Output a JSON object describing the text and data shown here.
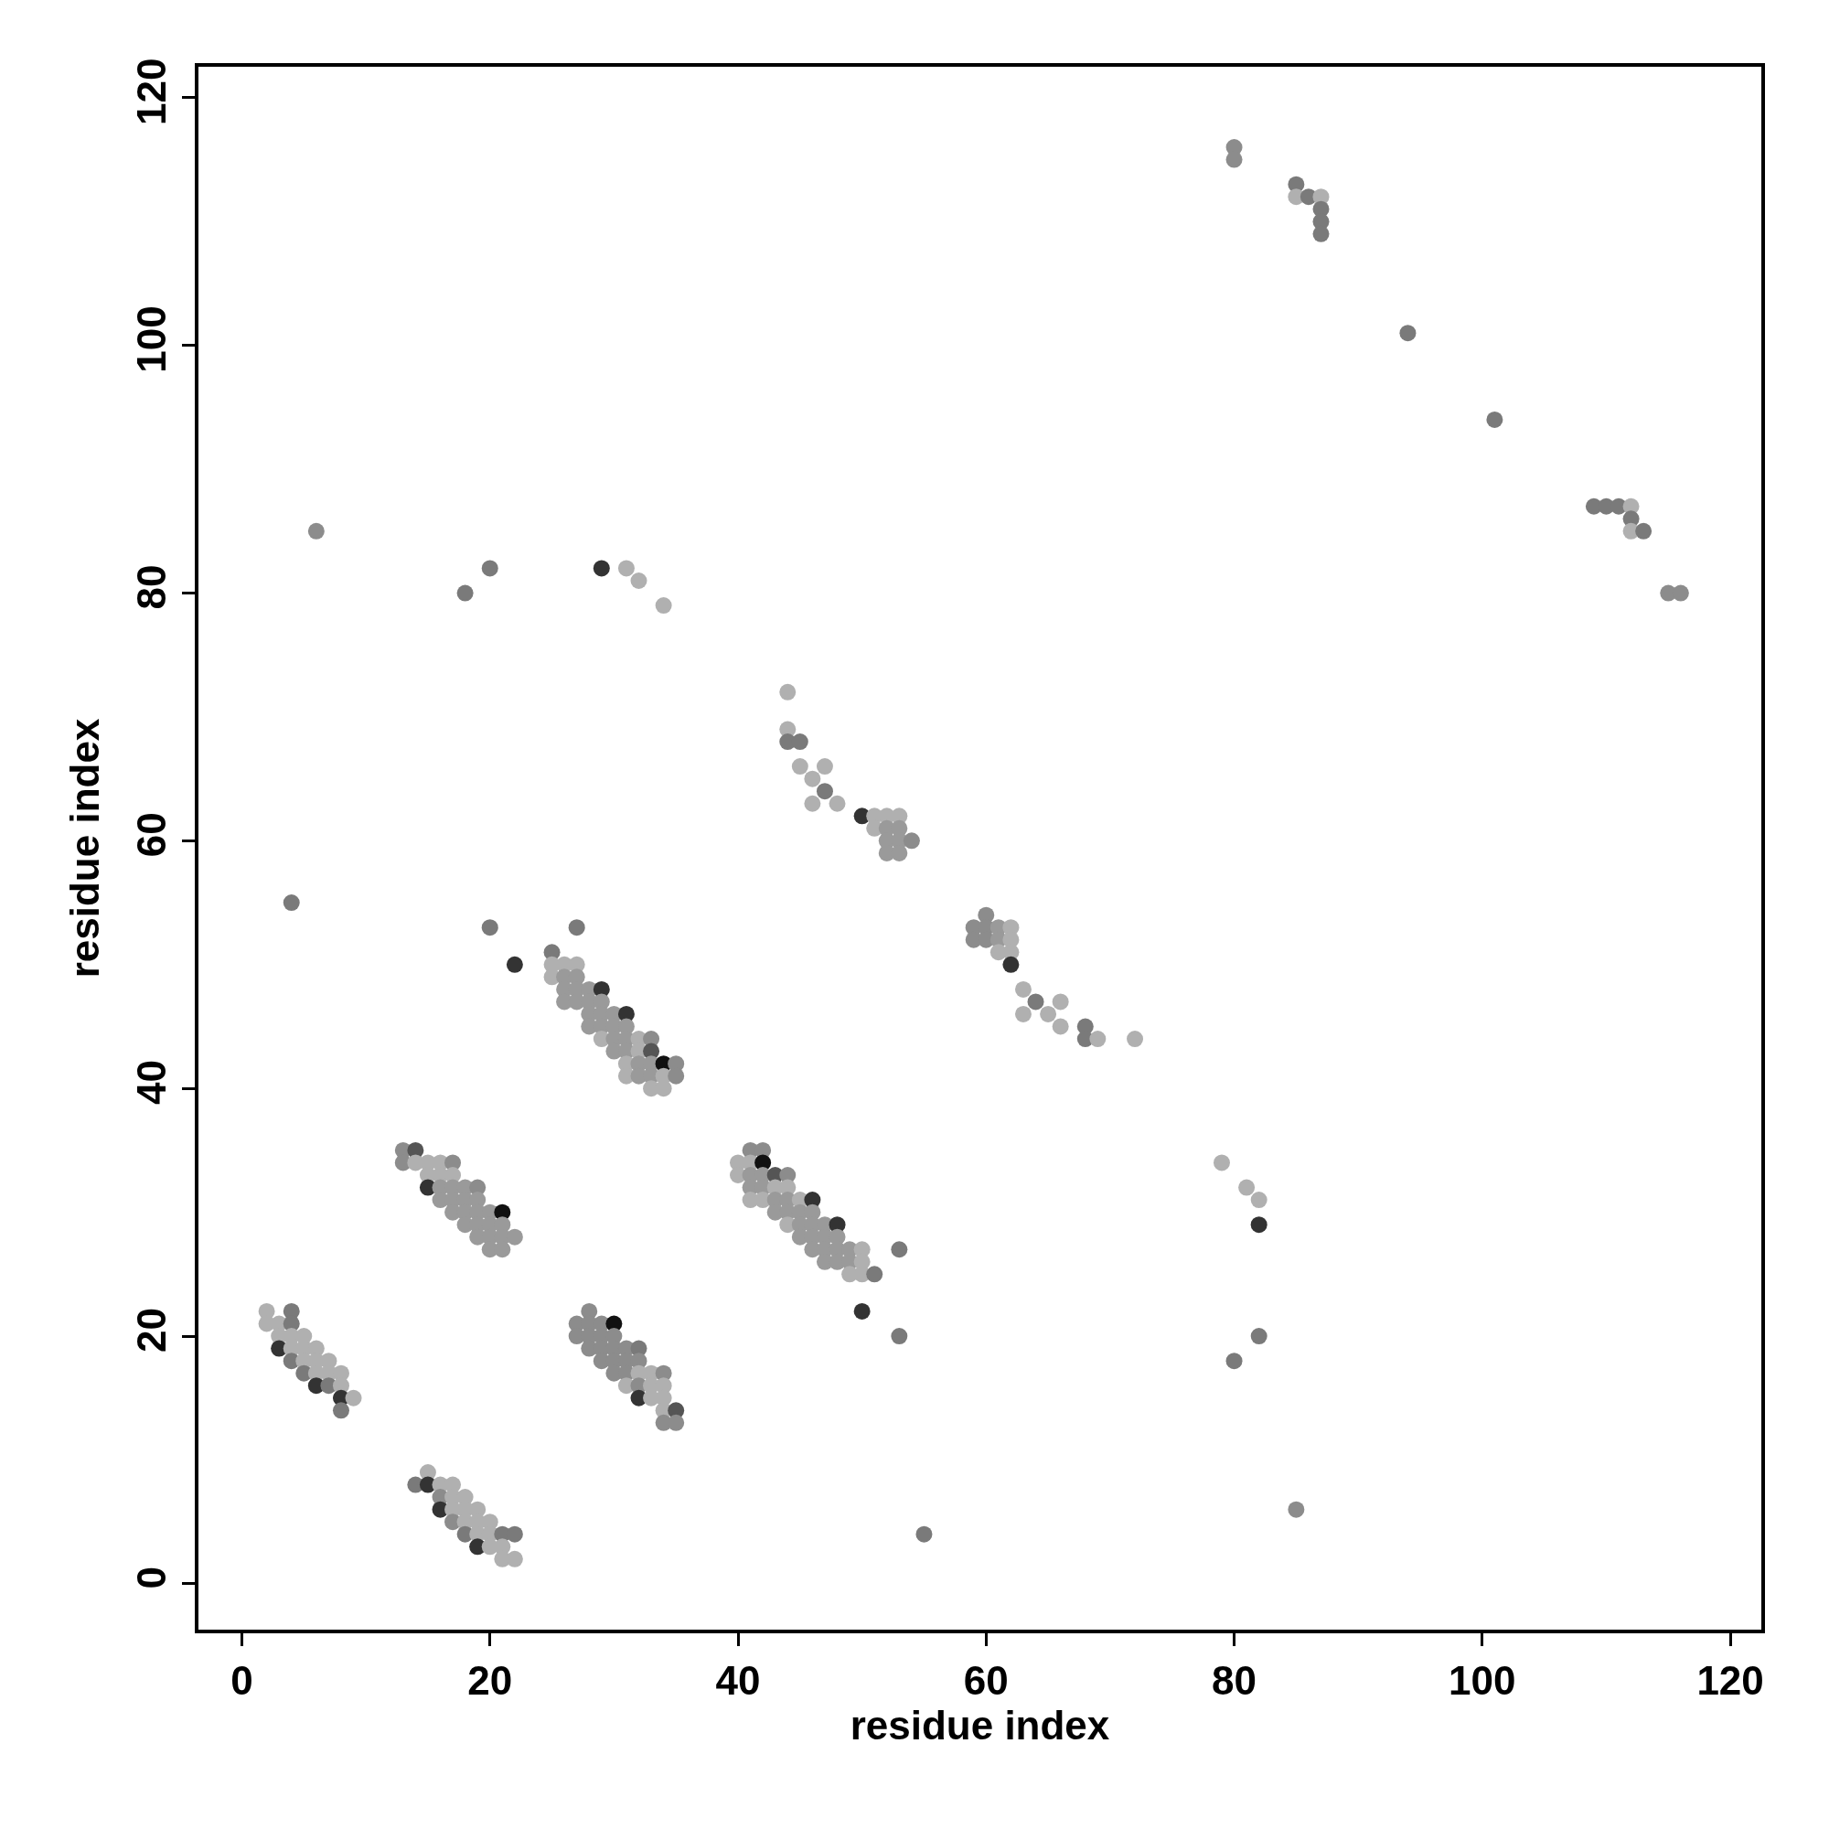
{
  "chart_data": {
    "type": "scatter",
    "xlabel": "residue index",
    "ylabel": "residue index",
    "marker": "circle",
    "xlim": [
      -3.5,
      122.5
    ],
    "ylim": [
      -3.7,
      122.5
    ],
    "xticks": [
      0,
      20,
      40,
      60,
      80,
      100,
      120
    ],
    "yticks": [
      0,
      20,
      40,
      60,
      80,
      100,
      120
    ],
    "series": [
      {
        "x": [
          2,
          2,
          3,
          4,
          4,
          3,
          4,
          5,
          3,
          4,
          5,
          6,
          4,
          5,
          6,
          7,
          5,
          6,
          7,
          8,
          6,
          7,
          8,
          8,
          9,
          8,
          13,
          13,
          14,
          14,
          15,
          16,
          17,
          15,
          16,
          17,
          15,
          16,
          17,
          18,
          19,
          16,
          17,
          18,
          19,
          17,
          18,
          19,
          20,
          21,
          18,
          19,
          20,
          21,
          19,
          20,
          21,
          22,
          20,
          21,
          14,
          15,
          15,
          16,
          17,
          16,
          17,
          18,
          16,
          17,
          18,
          19,
          17,
          18,
          19,
          20,
          18,
          19,
          20,
          21,
          22,
          19,
          20,
          21,
          21,
          22,
          28,
          27,
          28,
          29,
          30,
          27,
          28,
          29,
          30,
          28,
          29,
          30,
          31,
          32,
          29,
          30,
          31,
          32,
          30,
          31,
          32,
          33,
          34,
          31,
          32,
          33,
          34,
          32,
          33,
          34,
          34,
          35,
          34,
          35,
          27,
          25,
          25,
          26,
          27,
          25,
          26,
          27,
          26,
          27,
          28,
          29,
          26,
          27,
          28,
          29,
          28,
          29,
          30,
          31,
          28,
          29,
          30,
          31,
          29,
          30,
          31,
          32,
          33,
          30,
          31,
          32,
          33,
          31,
          32,
          33,
          34,
          35,
          31,
          32,
          33,
          34,
          35,
          33,
          34,
          41,
          42,
          40,
          41,
          42,
          40,
          41,
          42,
          43,
          44,
          41,
          42,
          43,
          44,
          41,
          42,
          43,
          44,
          45,
          46,
          43,
          44,
          45,
          46,
          44,
          45,
          46,
          47,
          48,
          45,
          46,
          47,
          48,
          46,
          47,
          48,
          49,
          50,
          53,
          47,
          48,
          49,
          50,
          49,
          50,
          51,
          50,
          53,
          44,
          44,
          44,
          45,
          45,
          47,
          46,
          47,
          46,
          48,
          50,
          51,
          52,
          53,
          51,
          52,
          53,
          52,
          53,
          54,
          52,
          53,
          60,
          59,
          60,
          61,
          62,
          59,
          60,
          61,
          62,
          61,
          62,
          62,
          63,
          64,
          66,
          63,
          65,
          66,
          68,
          68,
          69,
          72,
          6,
          4,
          18,
          20,
          29,
          31,
          32,
          34,
          20,
          22,
          55,
          79,
          81,
          82,
          82,
          80,
          82,
          85,
          80,
          80,
          85,
          85,
          86,
          87,
          87,
          87,
          87,
          94,
          101,
          109,
          110,
          111,
          112,
          112,
          112,
          113,
          115,
          116
        ],
        "values": [
          22,
          21,
          21,
          22,
          21,
          20,
          20,
          20,
          19,
          19,
          19,
          19,
          18,
          18,
          18,
          18,
          17,
          17,
          17,
          17,
          16,
          16,
          16,
          15,
          15,
          14,
          35,
          34,
          35,
          34,
          34,
          34,
          34,
          33,
          33,
          33,
          32,
          32,
          32,
          32,
          32,
          31,
          31,
          31,
          31,
          30,
          30,
          30,
          30,
          30,
          29,
          29,
          29,
          29,
          28,
          28,
          28,
          28,
          27,
          27,
          8,
          9,
          8,
          8,
          8,
          7,
          7,
          7,
          6,
          6,
          6,
          6,
          5,
          5,
          5,
          5,
          4,
          4,
          4,
          4,
          4,
          3,
          3,
          3,
          2,
          2,
          22,
          21,
          21,
          21,
          21,
          20,
          20,
          20,
          20,
          19,
          19,
          19,
          19,
          19,
          18,
          18,
          18,
          18,
          17,
          17,
          17,
          17,
          17,
          16,
          16,
          16,
          16,
          15,
          15,
          15,
          14,
          14,
          13,
          13,
          53,
          51,
          50,
          50,
          50,
          49,
          49,
          49,
          48,
          48,
          48,
          48,
          47,
          47,
          47,
          47,
          46,
          46,
          46,
          46,
          45,
          45,
          45,
          45,
          44,
          44,
          44,
          44,
          44,
          43,
          43,
          43,
          43,
          42,
          42,
          42,
          42,
          42,
          41,
          41,
          41,
          41,
          41,
          40,
          40,
          35,
          35,
          34,
          34,
          34,
          33,
          33,
          33,
          33,
          33,
          32,
          32,
          32,
          32,
          31,
          31,
          31,
          31,
          31,
          31,
          30,
          30,
          30,
          30,
          29,
          29,
          29,
          29,
          29,
          28,
          28,
          28,
          28,
          27,
          27,
          27,
          27,
          27,
          27,
          26,
          26,
          26,
          26,
          25,
          25,
          25,
          22,
          20,
          72,
          69,
          68,
          68,
          66,
          66,
          65,
          64,
          63,
          63,
          62,
          62,
          62,
          62,
          61,
          61,
          61,
          60,
          60,
          60,
          59,
          59,
          54,
          53,
          53,
          53,
          53,
          52,
          52,
          52,
          52,
          51,
          51,
          50,
          48,
          47,
          47,
          46,
          46,
          45,
          45,
          44,
          44,
          44,
          85,
          55,
          80,
          82,
          82,
          82,
          81,
          79,
          53,
          50,
          4,
          34,
          32,
          31,
          29,
          18,
          20,
          6,
          116,
          115,
          113,
          112,
          112,
          112,
          111,
          110,
          109,
          101,
          94,
          87,
          87,
          87,
          87,
          86,
          85,
          85,
          80,
          80
        ],
        "colors": [
          "#b0b0b0",
          "#b0b0b0",
          "#b0b0b0",
          "#7a7a7a",
          "#7a7a7a",
          "#b0b0b0",
          "#b0b0b0",
          "#b0b0b0",
          "#333333",
          "#b0b0b0",
          "#b0b0b0",
          "#b0b0b0",
          "#7a7a7a",
          "#b0b0b0",
          "#b0b0b0",
          "#b0b0b0",
          "#7a7a7a",
          "#b0b0b0",
          "#b0b0b0",
          "#b0b0b0",
          "#333333",
          "#7a7a7a",
          "#b0b0b0",
          "#333333",
          "#b0b0b0",
          "#7a7a7a",
          "#8c8c8c",
          "#8c8c8c",
          "#555555",
          "#b0b0b0",
          "#b0b0b0",
          "#b0b0b0",
          "#8c8c8c",
          "#b0b0b0",
          "#b0b0b0",
          "#b0b0b0",
          "#333333",
          "#9a9a9a",
          "#9a9a9a",
          "#9a9a9a",
          "#8c8c8c",
          "#9a9a9a",
          "#9a9a9a",
          "#9a9a9a",
          "#9a9a9a",
          "#9a9a9a",
          "#9a9a9a",
          "#9a9a9a",
          "#9a9a9a",
          "#111111",
          "#9a9a9a",
          "#9a9a9a",
          "#9a9a9a",
          "#9a9a9a",
          "#9a9a9a",
          "#9a9a9a",
          "#9a9a9a",
          "#9a9a9a",
          "#9a9a9a",
          "#9a9a9a",
          "#7a7a7a",
          "#b0b0b0",
          "#333333",
          "#b0b0b0",
          "#b0b0b0",
          "#8c8c8c",
          "#b0b0b0",
          "#b0b0b0",
          "#333333",
          "#b0b0b0",
          "#b0b0b0",
          "#b0b0b0",
          "#8c8c8c",
          "#b0b0b0",
          "#b0b0b0",
          "#b0b0b0",
          "#7a7a7a",
          "#b0b0b0",
          "#b0b0b0",
          "#7a7a7a",
          "#7a7a7a",
          "#333333",
          "#b0b0b0",
          "#b0b0b0",
          "#b0b0b0",
          "#b0b0b0",
          "#8c8c8c",
          "#8c8c8c",
          "#8c8c8c",
          "#8c8c8c",
          "#111111",
          "#8c8c8c",
          "#8c8c8c",
          "#8c8c8c",
          "#8c8c8c",
          "#8c8c8c",
          "#8c8c8c",
          "#8c8c8c",
          "#8c8c8c",
          "#7a7a7a",
          "#8c8c8c",
          "#8c8c8c",
          "#8c8c8c",
          "#8c8c8c",
          "#8c8c8c",
          "#8c8c8c",
          "#b0b0b0",
          "#b0b0b0",
          "#8c8c8c",
          "#b0b0b0",
          "#8c8c8c",
          "#b0b0b0",
          "#b0b0b0",
          "#333333",
          "#b0b0b0",
          "#b0b0b0",
          "#b0b0b0",
          "#555555",
          "#8c8c8c",
          "#8c8c8c",
          "#7a7a7a",
          "#7a7a7a",
          "#b0b0b0",
          "#b0b0b0",
          "#b0b0b0",
          "#b0b0b0",
          "#9a9a9a",
          "#9a9a9a",
          "#9a9a9a",
          "#9a9a9a",
          "#9a9a9a",
          "#333333",
          "#9a9a9a",
          "#9a9a9a",
          "#9a9a9a",
          "#9a9a9a",
          "#9a9a9a",
          "#9a9a9a",
          "#9a9a9a",
          "#333333",
          "#9a9a9a",
          "#9a9a9a",
          "#9a9a9a",
          "#9a9a9a",
          "#b0b0b0",
          "#9a9a9a",
          "#9a9a9a",
          "#b0b0b0",
          "#8c8c8c",
          "#9a9a9a",
          "#9a9a9a",
          "#b0b0b0",
          "#555555",
          "#b0b0b0",
          "#9a9a9a",
          "#9a9a9a",
          "#111111",
          "#8c8c8c",
          "#b0b0b0",
          "#9a9a9a",
          "#9a9a9a",
          "#b0b0b0",
          "#8c8c8c",
          "#b0b0b0",
          "#b0b0b0",
          "#8c8c8c",
          "#8c8c8c",
          "#b0b0b0",
          "#b0b0b0",
          "#111111",
          "#b0b0b0",
          "#9a9a9a",
          "#9a9a9a",
          "#555555",
          "#8c8c8c",
          "#9a9a9a",
          "#9a9a9a",
          "#b0b0b0",
          "#b0b0b0",
          "#b0b0b0",
          "#b0b0b0",
          "#9a9a9a",
          "#9a9a9a",
          "#b0b0b0",
          "#333333",
          "#9a9a9a",
          "#9a9a9a",
          "#9a9a9a",
          "#9a9a9a",
          "#b0b0b0",
          "#9a9a9a",
          "#9a9a9a",
          "#9a9a9a",
          "#333333",
          "#9a9a9a",
          "#9a9a9a",
          "#9a9a9a",
          "#9a9a9a",
          "#9a9a9a",
          "#9a9a9a",
          "#9a9a9a",
          "#9a9a9a",
          "#b0b0b0",
          "#7a7a7a",
          "#9a9a9a",
          "#9a9a9a",
          "#9a9a9a",
          "#b0b0b0",
          "#b0b0b0",
          "#b0b0b0",
          "#7a7a7a",
          "#333333",
          "#7a7a7a",
          "#b0b0b0",
          "#b0b0b0",
          "#7a7a7a",
          "#7a7a7a",
          "#b0b0b0",
          "#b0b0b0",
          "#b0b0b0",
          "#7a7a7a",
          "#b0b0b0",
          "#b0b0b0",
          "#333333",
          "#b0b0b0",
          "#b0b0b0",
          "#b0b0b0",
          "#b0b0b0",
          "#9a9a9a",
          "#9a9a9a",
          "#9a9a9a",
          "#9a9a9a",
          "#8c8c8c",
          "#9a9a9a",
          "#9a9a9a",
          "#8c8c8c",
          "#8c8c8c",
          "#8c8c8c",
          "#9a9a9a",
          "#b0b0b0",
          "#8c8c8c",
          "#8c8c8c",
          "#9a9a9a",
          "#b0b0b0",
          "#b0b0b0",
          "#b0b0b0",
          "#333333",
          "#b0b0b0",
          "#7a7a7a",
          "#b0b0b0",
          "#b0b0b0",
          "#b0b0b0",
          "#b0b0b0",
          "#7a7a7a",
          "#7a7a7a",
          "#b0b0b0",
          "#b0b0b0",
          "#8c8c8c",
          "#7a7a7a",
          "#7a7a7a",
          "#7a7a7a",
          "#333333",
          "#b0b0b0",
          "#b0b0b0",
          "#b0b0b0",
          "#7a7a7a",
          "#333333",
          "#7a7a7a",
          "#b0b0b0",
          "#b0b0b0",
          "#b0b0b0",
          "#333333",
          "#7a7a7a",
          "#7a7a7a",
          "#8c8c8c",
          "#8c8c8c",
          "#8c8c8c",
          "#7a7a7a",
          "#b0b0b0",
          "#7a7a7a",
          "#b0b0b0",
          "#7a7a7a",
          "#7a7a7a",
          "#7a7a7a",
          "#7a7a7a",
          "#7a7a7a",
          "#7a7a7a",
          "#7a7a7a",
          "#7a7a7a",
          "#b0b0b0",
          "#7a7a7a",
          "#b0b0b0",
          "#7a7a7a",
          "#8c8c8c",
          "#8c8c8c"
        ]
      }
    ]
  }
}
